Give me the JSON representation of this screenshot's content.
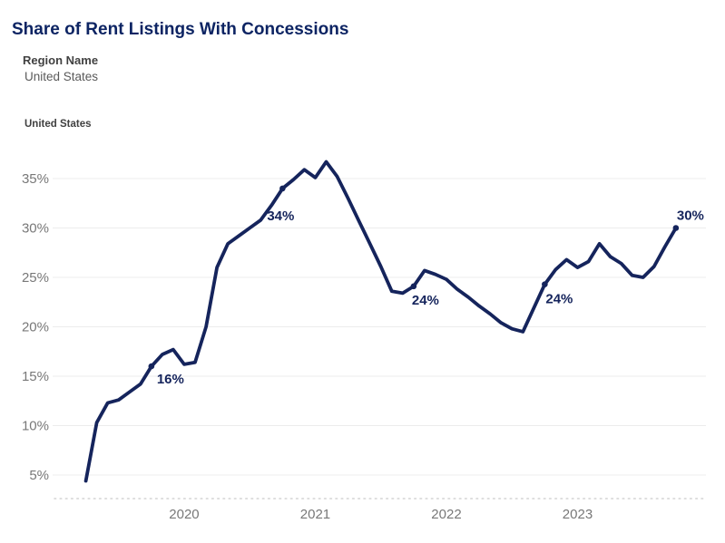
{
  "header": {
    "title": "Share of Rent Listings With Concessions"
  },
  "filter": {
    "label": "Region Name",
    "value": "United States"
  },
  "legend": {
    "series_label": "United States"
  },
  "colors": {
    "navy_line": "#15245C",
    "title_navy": "#0D2463",
    "gridline": "#ECECEC",
    "axis_text": "#787878",
    "baseline_dots": "#D4D4D4"
  },
  "chart_data": {
    "type": "line",
    "title": "Share of Rent Listings With Concessions",
    "xlabel": "",
    "ylabel": "",
    "x_unit": "month",
    "legend_position": "top-left",
    "grid": "horizontal",
    "y_axis_range": [
      5,
      35
    ],
    "y_ticks": [
      "5%",
      "10%",
      "15%",
      "20%",
      "25%",
      "30%",
      "35%"
    ],
    "x_tick_labels": [
      "2020",
      "2021",
      "2022",
      "2023"
    ],
    "x": [
      "2019-04",
      "2019-05",
      "2019-06",
      "2019-07",
      "2019-08",
      "2019-09",
      "2019-10",
      "2019-11",
      "2019-12",
      "2020-01",
      "2020-02",
      "2020-03",
      "2020-04",
      "2020-05",
      "2020-06",
      "2020-07",
      "2020-08",
      "2020-09",
      "2020-10",
      "2020-11",
      "2020-12",
      "2021-01",
      "2021-02",
      "2021-03",
      "2021-04",
      "2021-05",
      "2021-06",
      "2021-07",
      "2021-08",
      "2021-09",
      "2021-10",
      "2021-11",
      "2021-12",
      "2022-01",
      "2022-02",
      "2022-03",
      "2022-04",
      "2022-05",
      "2022-06",
      "2022-07",
      "2022-08",
      "2022-09",
      "2022-10",
      "2022-11",
      "2022-12",
      "2023-01",
      "2023-02",
      "2023-03",
      "2023-04",
      "2023-05",
      "2023-06",
      "2023-07",
      "2023-08",
      "2023-09",
      "2023-10"
    ],
    "series": [
      {
        "name": "United States",
        "values": [
          4.4,
          10.3,
          12.3,
          12.6,
          13.4,
          14.2,
          16.0,
          17.2,
          17.7,
          16.2,
          16.4,
          20.0,
          26.0,
          28.4,
          29.2,
          30.0,
          30.8,
          32.3,
          34.0,
          34.9,
          35.9,
          35.1,
          36.7,
          35.2,
          33.0,
          30.7,
          28.4,
          26.1,
          23.6,
          23.4,
          24.1,
          25.7,
          25.3,
          24.8,
          23.8,
          23.0,
          22.1,
          21.3,
          20.4,
          19.8,
          19.5,
          21.9,
          24.3,
          25.8,
          26.8,
          26.0,
          26.6,
          28.4,
          27.1,
          26.4,
          25.2,
          25.0,
          26.1,
          28.1,
          30.0
        ]
      }
    ],
    "annotations": [
      {
        "x": "2019-10",
        "label": "16%"
      },
      {
        "x": "2020-10",
        "label": "34%"
      },
      {
        "x": "2021-10",
        "label": "24%"
      },
      {
        "x": "2022-10",
        "label": "24%"
      },
      {
        "x": "2023-10",
        "label": "30%"
      }
    ]
  }
}
